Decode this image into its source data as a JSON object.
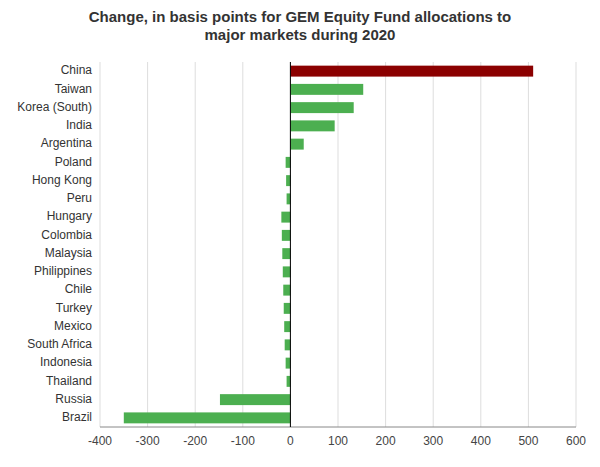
{
  "chart_data": {
    "type": "bar",
    "orientation": "horizontal",
    "title": "Change, in basis points for GEM Equity Fund allocations to\nmajor markets during 2020",
    "categories": [
      "Brazil",
      "Russia",
      "Thailand",
      "Indonesia",
      "South Africa",
      "Mexico",
      "Turkey",
      "Chile",
      "Philippines",
      "Malaysia",
      "Colombia",
      "Hungary",
      "Peru",
      "Hong Kong",
      "Poland",
      "Argentina",
      "India",
      "Korea (South)",
      "Taiwan",
      "China"
    ],
    "values": [
      -350,
      -148,
      -8,
      -10,
      -12,
      -13,
      -14,
      -15,
      -16,
      -17,
      -18,
      -19,
      -8,
      -9,
      -10,
      28,
      93,
      133,
      153,
      510
    ],
    "colors": [
      "#4caf50",
      "#4caf50",
      "#4caf50",
      "#4caf50",
      "#4caf50",
      "#4caf50",
      "#4caf50",
      "#4caf50",
      "#4caf50",
      "#4caf50",
      "#4caf50",
      "#4caf50",
      "#4caf50",
      "#4caf50",
      "#4caf50",
      "#4caf50",
      "#4caf50",
      "#4caf50",
      "#4caf50",
      "#8b0000"
    ],
    "xlim": [
      -400,
      600
    ],
    "xticks": [
      -400,
      -300,
      -200,
      -100,
      0,
      100,
      200,
      300,
      400,
      500,
      600
    ],
    "grid": true
  }
}
